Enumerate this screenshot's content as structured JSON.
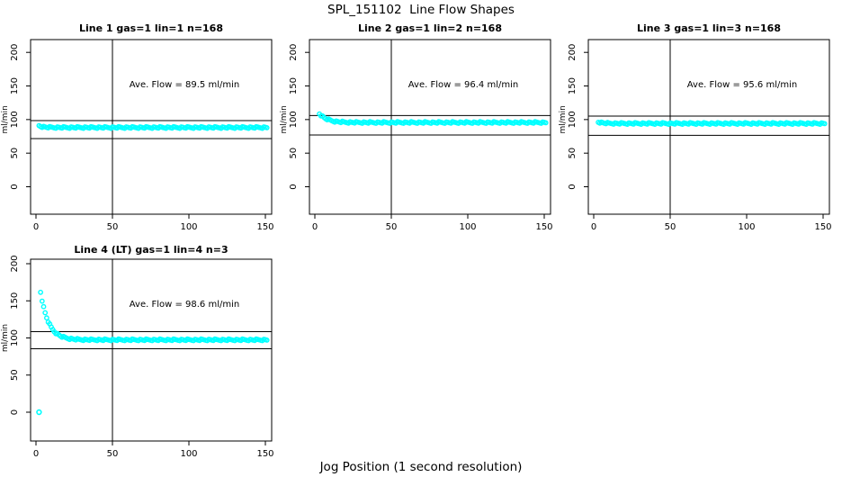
{
  "figure": {
    "title": "SPL_151102  Line Flow Shapes",
    "xlabel": "Jog Position (1 second resolution)",
    "background": "#FFFFFF",
    "axis_color": "#000000",
    "marker": "open-circle",
    "marker_color": "#00FFFF"
  },
  "chart_data": [
    {
      "type": "scatter",
      "title": "Line 1 gas=1 lin=1 n=168",
      "ylabel": "ml/min",
      "annotation": "Ave. Flow =  89.5  ml/min",
      "ave_flow": 89.5,
      "n": 168,
      "x_ticks": [
        0,
        50,
        100,
        150
      ],
      "y_ticks": [
        0,
        50,
        100,
        150,
        200
      ],
      "xlim": [
        0,
        155
      ],
      "ylim": [
        0,
        200
      ],
      "vline_x": 50,
      "hlines": [
        98.5,
        71.6
      ],
      "series_model": {
        "x_start": 2,
        "x_end": 151,
        "x_step": 1,
        "y_start": 91,
        "y_flat": 88.2,
        "tau": 2.5
      },
      "key_points": [
        [
          2,
          91
        ],
        [
          5,
          88.6
        ],
        [
          20,
          88.2
        ],
        [
          50,
          88.2
        ],
        [
          100,
          88.2
        ],
        [
          151,
          88.2
        ]
      ],
      "extra_points": []
    },
    {
      "type": "scatter",
      "title": "Line 2 gas=1 lin=2 n=168",
      "ylabel": "ml/min",
      "annotation": "Ave. Flow =  96.4  ml/min",
      "ave_flow": 96.4,
      "n": 168,
      "x_ticks": [
        0,
        50,
        100,
        150
      ],
      "y_ticks": [
        0,
        50,
        100,
        150,
        200
      ],
      "xlim": [
        0,
        155
      ],
      "ylim": [
        0,
        200
      ],
      "vline_x": 50,
      "hlines": [
        106.0,
        77.1
      ],
      "series_model": {
        "x_start": 3,
        "x_end": 151,
        "x_step": 1,
        "y_start": 109,
        "y_flat": 95.6,
        "tau": 5
      },
      "key_points": [
        [
          3,
          109
        ],
        [
          6,
          103
        ],
        [
          10,
          98.9
        ],
        [
          15,
          96.8
        ],
        [
          50,
          95.6
        ],
        [
          100,
          95.6
        ],
        [
          151,
          95.6
        ]
      ],
      "extra_points": []
    },
    {
      "type": "scatter",
      "title": "Line 3 gas=1 lin=3 n=168",
      "ylabel": "ml/min",
      "annotation": "Ave. Flow =  95.6  ml/min",
      "ave_flow": 95.6,
      "n": 168,
      "x_ticks": [
        0,
        50,
        100,
        150
      ],
      "y_ticks": [
        0,
        50,
        100,
        150,
        200
      ],
      "xlim": [
        0,
        155
      ],
      "ylim": [
        0,
        200
      ],
      "vline_x": 50,
      "hlines": [
        105.2,
        76.5
      ],
      "series_model": {
        "x_start": 3,
        "x_end": 151,
        "x_step": 1,
        "y_start": 96.5,
        "y_flat": 94.2,
        "tau": 3
      },
      "key_points": [
        [
          3,
          96.5
        ],
        [
          8,
          94.6
        ],
        [
          50,
          94.2
        ],
        [
          100,
          94.2
        ],
        [
          151,
          94.2
        ]
      ],
      "extra_points": []
    },
    {
      "type": "scatter",
      "title": "Line 4 (LT) gas=1 lin=4 n=3",
      "ylabel": "ml/min",
      "annotation": "Ave. Flow =  98.6  ml/min",
      "ave_flow": 98.6,
      "n": 3,
      "x_ticks": [
        0,
        50,
        100,
        150
      ],
      "y_ticks": [
        0,
        50,
        100,
        150,
        200
      ],
      "xlim": [
        0,
        155
      ],
      "ylim": [
        0,
        200
      ],
      "vline_x": 50,
      "hlines": [
        108.5,
        85.5
      ],
      "series_model": {
        "x_start": 3,
        "x_end": 151,
        "x_step": 1,
        "y_start": 162,
        "y_flat": 97.4,
        "tau": 5.2
      },
      "key_points": [
        [
          2,
          0
        ],
        [
          3,
          162
        ],
        [
          5,
          142
        ],
        [
          8,
          122
        ],
        [
          12,
          109
        ],
        [
          16,
          103
        ],
        [
          20,
          100
        ],
        [
          30,
          98
        ],
        [
          50,
          97.4
        ],
        [
          100,
          97.4
        ],
        [
          151,
          97.4
        ]
      ],
      "extra_points": [
        [
          2,
          0
        ]
      ]
    }
  ]
}
